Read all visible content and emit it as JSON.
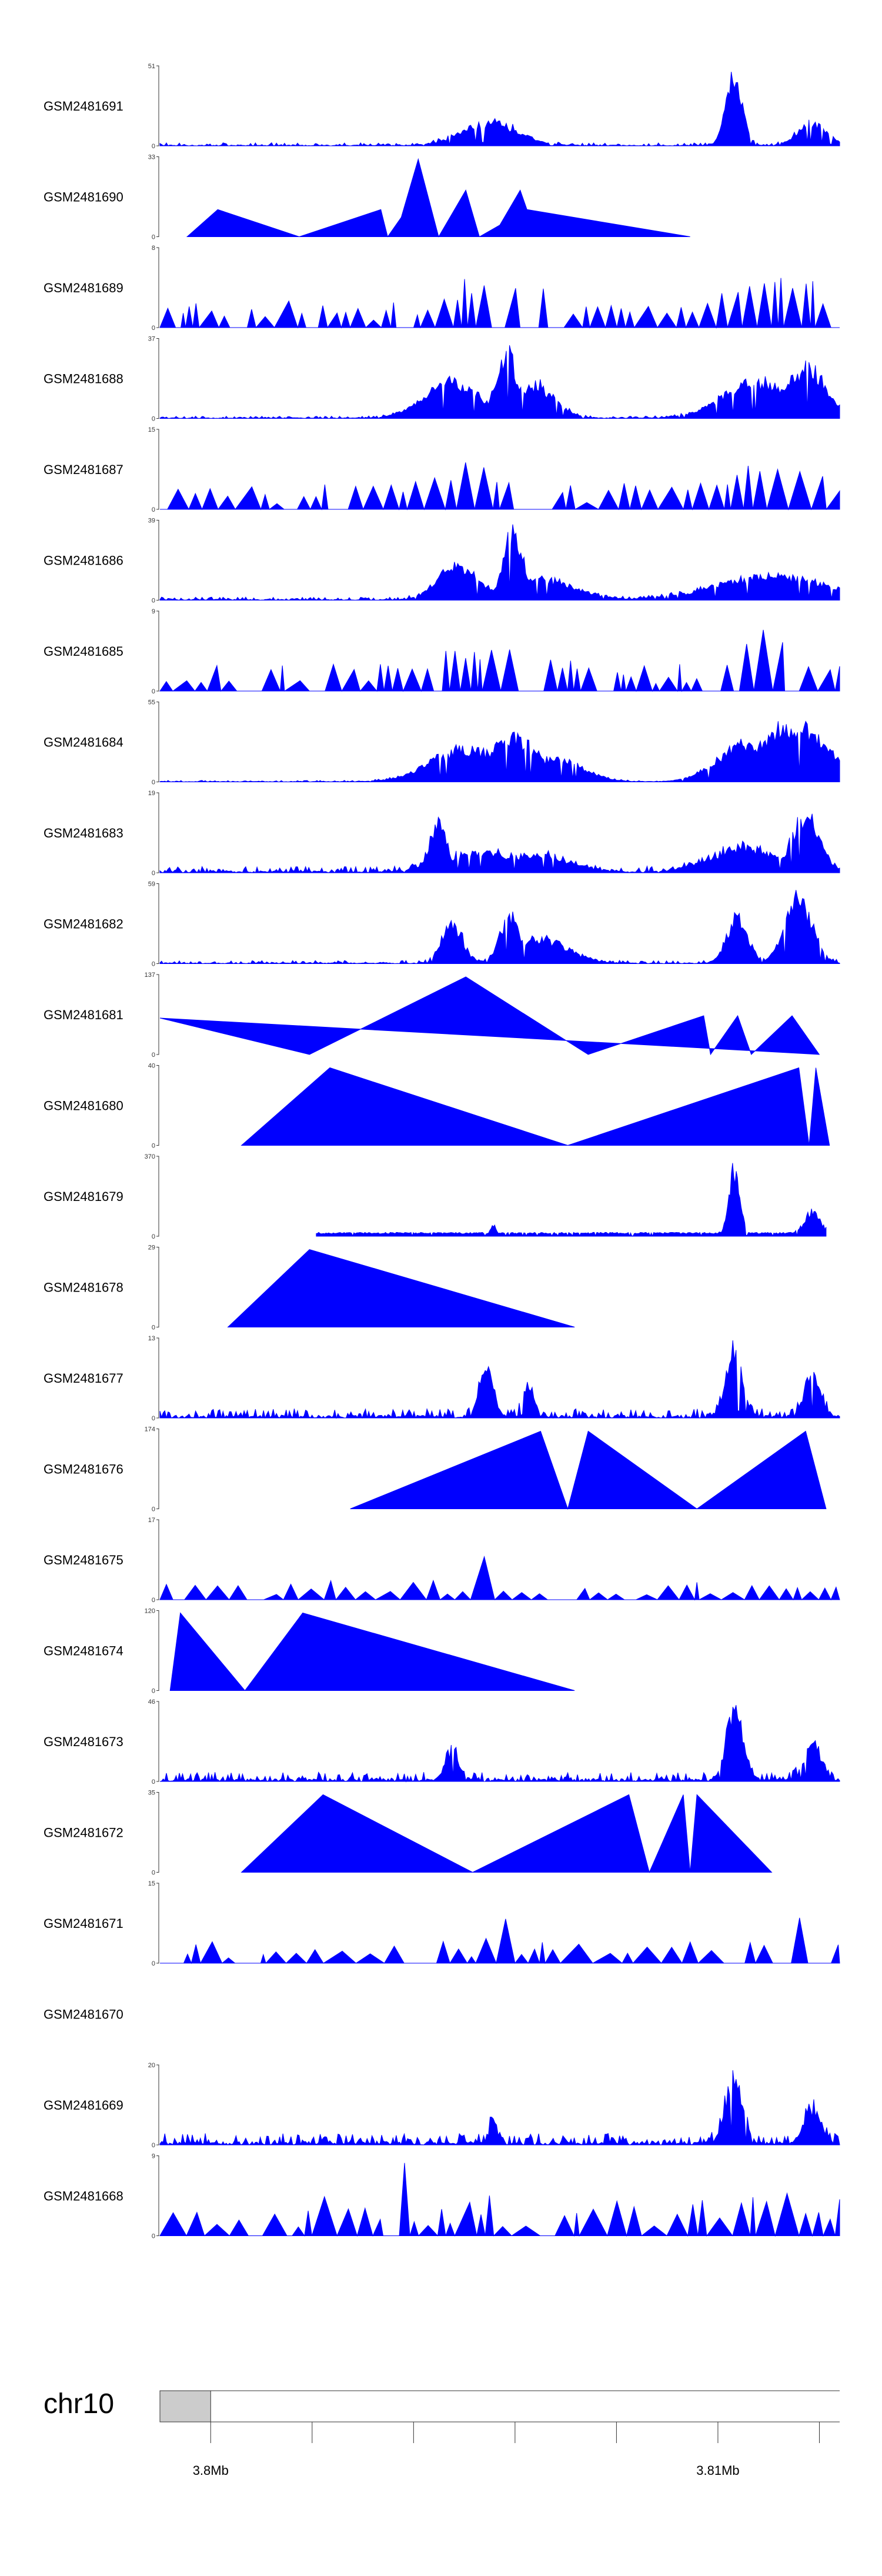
{
  "chart_data": {
    "type": "area",
    "title": "",
    "fill_color": "#0000ff",
    "chromosome": "chr10",
    "x_ticks": [
      {
        "pos": 3800000,
        "label": "3.8Mb"
      },
      {
        "pos": 3810000,
        "label": "3.81Mb"
      }
    ],
    "region_start": 3799000,
    "region_end": 3812400,
    "tracks": [
      {
        "name": "GSM2481691",
        "ymax": 51,
        "ymin": 0,
        "shape": "peaky",
        "peaks": [
          [
            0.485,
            0.35,
            0.04
          ],
          [
            0.845,
            1.0,
            0.012
          ],
          [
            0.96,
            0.35,
            0.02
          ]
        ],
        "noise": 0.04
      },
      {
        "name": "GSM2481690",
        "ymax": 33,
        "ymin": 0,
        "shape": "sparse",
        "points": [
          [
            0.04,
            0
          ],
          [
            0.085,
            0.35
          ],
          [
            0.205,
            0
          ],
          [
            0.325,
            0.35
          ],
          [
            0.335,
            0
          ],
          [
            0.355,
            0.25
          ],
          [
            0.38,
            1.0
          ],
          [
            0.41,
            0
          ],
          [
            0.45,
            0.6
          ],
          [
            0.47,
            0
          ],
          [
            0.5,
            0.15
          ],
          [
            0.53,
            0.6
          ],
          [
            0.54,
            0.35
          ],
          [
            0.78,
            0
          ]
        ]
      },
      {
        "name": "GSM2481689",
        "ymax": 8,
        "ymin": 0,
        "shape": "spiky",
        "seed": 3,
        "density": 0.9,
        "peaks": [
          [
            0.5,
            0.8,
            0.08
          ],
          [
            0.9,
            0.8,
            0.08
          ]
        ]
      },
      {
        "name": "GSM2481688",
        "ymax": 37,
        "ymin": 0,
        "shape": "peaky",
        "peaks": [
          [
            0.43,
            0.55,
            0.04
          ],
          [
            0.51,
            1.0,
            0.015
          ],
          [
            0.55,
            0.5,
            0.03
          ],
          [
            0.88,
            0.55,
            0.05
          ],
          [
            0.95,
            0.75,
            0.03
          ]
        ],
        "noise": 0.03
      },
      {
        "name": "GSM2481687",
        "ymax": 15,
        "ymin": 0,
        "shape": "spiky",
        "seed": 7,
        "density": 0.7,
        "peaks": [
          [
            0.45,
            0.65,
            0.08
          ],
          [
            0.9,
            0.8,
            0.08
          ]
        ]
      },
      {
        "name": "GSM2481686",
        "ymax": 39,
        "ymin": 0,
        "shape": "peaky",
        "peaks": [
          [
            0.44,
            0.5,
            0.03
          ],
          [
            0.52,
            1.0,
            0.015
          ],
          [
            0.56,
            0.3,
            0.05
          ],
          [
            0.9,
            0.35,
            0.08
          ]
        ],
        "noise": 0.04
      },
      {
        "name": "GSM2481685",
        "ymax": 9,
        "ymin": 0,
        "shape": "spiky",
        "seed": 11,
        "density": 0.9,
        "peaks": [
          [
            0.5,
            0.7,
            0.12
          ],
          [
            0.9,
            0.9,
            0.06
          ]
        ]
      },
      {
        "name": "GSM2481684",
        "ymax": 55,
        "ymin": 0,
        "shape": "peaky",
        "peaks": [
          [
            0.45,
            0.5,
            0.05
          ],
          [
            0.52,
            0.65,
            0.04
          ],
          [
            0.58,
            0.35,
            0.04
          ],
          [
            0.86,
            0.55,
            0.04
          ],
          [
            0.93,
            0.85,
            0.05
          ]
        ],
        "noise": 0.02
      },
      {
        "name": "GSM2481683",
        "ymax": 19,
        "ymin": 0,
        "shape": "peaky",
        "peaks": [
          [
            0.41,
            0.75,
            0.012
          ],
          [
            0.47,
            0.3,
            0.05
          ],
          [
            0.55,
            0.25,
            0.05
          ],
          [
            0.86,
            0.35,
            0.05
          ],
          [
            0.95,
            0.85,
            0.02
          ]
        ],
        "noise": 0.08
      },
      {
        "name": "GSM2481682",
        "ymax": 59,
        "ymin": 0,
        "shape": "peaky",
        "peaks": [
          [
            0.43,
            0.6,
            0.015
          ],
          [
            0.515,
            0.7,
            0.015
          ],
          [
            0.56,
            0.35,
            0.04
          ],
          [
            0.85,
            0.7,
            0.015
          ],
          [
            0.94,
            0.95,
            0.02
          ]
        ],
        "noise": 0.04
      },
      {
        "name": "GSM2481681",
        "ymax": 137,
        "ymin": 0,
        "shape": "sparse",
        "points": [
          [
            0.0,
            0.47
          ],
          [
            0.22,
            0
          ],
          [
            0.45,
            1.0
          ],
          [
            0.63,
            0
          ],
          [
            0.8,
            0.5
          ],
          [
            0.81,
            0
          ],
          [
            0.85,
            0.5
          ],
          [
            0.87,
            0
          ],
          [
            0.93,
            0.5
          ],
          [
            0.97,
            0
          ]
        ]
      },
      {
        "name": "GSM2481680",
        "ymax": 40,
        "ymin": 0,
        "shape": "sparse",
        "points": [
          [
            0.12,
            0
          ],
          [
            0.25,
            1.0
          ],
          [
            0.6,
            0
          ],
          [
            0.94,
            1.0
          ],
          [
            0.955,
            0
          ],
          [
            0.965,
            1.0
          ],
          [
            0.985,
            0
          ]
        ]
      },
      {
        "name": "GSM2481679",
        "ymax": 370,
        "ymin": 0,
        "shape": "peaky_range",
        "start": 0.23,
        "end": 0.98,
        "peaks": [
          [
            0.845,
            1.0,
            0.008
          ],
          [
            0.49,
            0.15,
            0.004
          ],
          [
            0.96,
            0.35,
            0.012
          ]
        ],
        "base": 0.05
      },
      {
        "name": "GSM2481678",
        "ymax": 29,
        "ymin": 0,
        "shape": "sparse",
        "points": [
          [
            0.1,
            0
          ],
          [
            0.22,
            1.0
          ],
          [
            0.61,
            0
          ]
        ]
      },
      {
        "name": "GSM2481677",
        "ymax": 13,
        "ymin": 0,
        "shape": "peaky",
        "peaks": [
          [
            0.48,
            0.7,
            0.01
          ],
          [
            0.54,
            0.45,
            0.01
          ],
          [
            0.845,
            0.95,
            0.012
          ],
          [
            0.96,
            0.6,
            0.012
          ]
        ],
        "noise": 0.12
      },
      {
        "name": "GSM2481676",
        "ymax": 174,
        "ymin": 0,
        "shape": "sparse",
        "points": [
          [
            0.28,
            0
          ],
          [
            0.56,
            1.0
          ],
          [
            0.6,
            0
          ],
          [
            0.63,
            1.0
          ],
          [
            0.79,
            0
          ],
          [
            0.95,
            1.0
          ],
          [
            0.98,
            0
          ]
        ]
      },
      {
        "name": "GSM2481675",
        "ymax": 17,
        "ymin": 0,
        "shape": "spiky",
        "seed": 19,
        "density": 0.6,
        "peaks": [
          [
            0.48,
            1.0,
            0.012
          ]
        ],
        "lowbias": 0.25
      },
      {
        "name": "GSM2481674",
        "ymax": 120,
        "ymin": 0,
        "shape": "sparse",
        "points": [
          [
            0.015,
            0
          ],
          [
            0.03,
            1.0
          ],
          [
            0.125,
            0
          ],
          [
            0.21,
            1.0
          ],
          [
            0.61,
            0
          ]
        ]
      },
      {
        "name": "GSM2481673",
        "ymax": 46,
        "ymin": 0,
        "shape": "peaky",
        "peaks": [
          [
            0.43,
            0.45,
            0.01
          ],
          [
            0.845,
            1.0,
            0.012
          ],
          [
            0.96,
            0.55,
            0.012
          ]
        ],
        "noise": 0.12
      },
      {
        "name": "GSM2481672",
        "ymax": 35,
        "ymin": 0,
        "shape": "sparse",
        "points": [
          [
            0.12,
            0
          ],
          [
            0.24,
            1.0
          ],
          [
            0.46,
            0
          ],
          [
            0.69,
            1.0
          ],
          [
            0.72,
            0
          ],
          [
            0.77,
            1.0
          ],
          [
            0.78,
            0
          ],
          [
            0.79,
            1.0
          ],
          [
            0.9,
            0
          ]
        ]
      },
      {
        "name": "GSM2481671",
        "ymax": 15,
        "ymin": 0,
        "shape": "spiky",
        "seed": 23,
        "density": 0.55,
        "peaks": [
          [
            0.5,
            0.8,
            0.015
          ],
          [
            0.85,
            0.95,
            0.015
          ],
          [
            0.95,
            1.0,
            0.012
          ]
        ],
        "lowbias": 0.3
      },
      {
        "name": "GSM2481670",
        "ymax": null,
        "ymin": null,
        "shape": "empty"
      },
      {
        "name": "GSM2481669",
        "ymax": 20,
        "ymin": 0,
        "shape": "peaky",
        "peaks": [
          [
            0.845,
            1.0,
            0.012
          ],
          [
            0.96,
            0.5,
            0.012
          ],
          [
            0.49,
            0.35,
            0.006
          ]
        ],
        "noise": 0.15
      },
      {
        "name": "GSM2481668",
        "ymax": 9,
        "ymin": 0,
        "shape": "spiky",
        "seed": 29,
        "density": 0.55,
        "peaks": [
          [
            0.36,
            1.0,
            0.005
          ]
        ],
        "lowbias": 0.55
      }
    ]
  }
}
